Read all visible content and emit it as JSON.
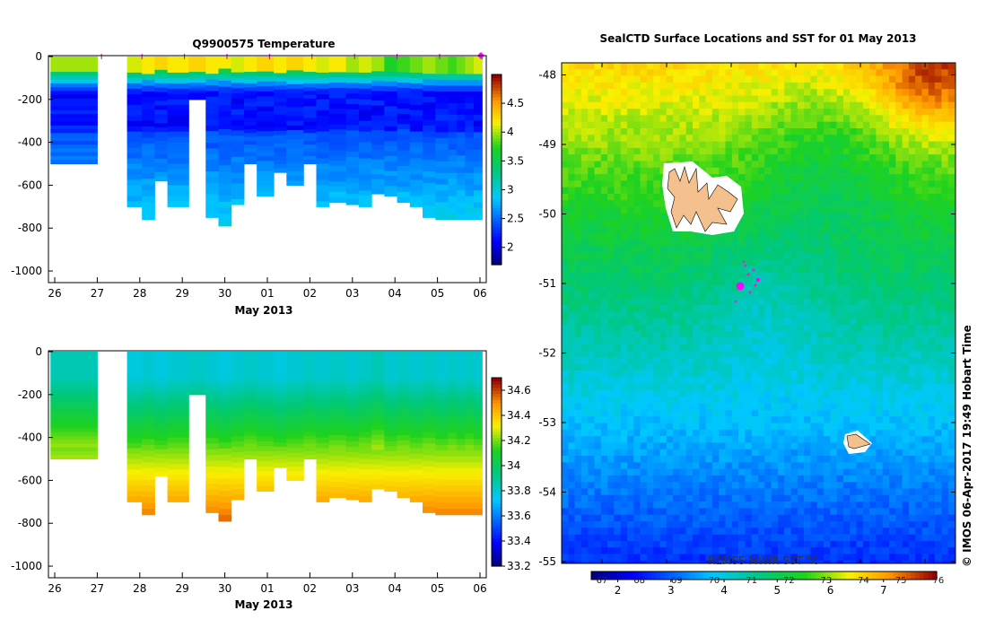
{
  "chart_data": [
    {
      "type": "heatmap",
      "title": "Q9900575  Temperature",
      "xlabel": "May 2013",
      "x_ticks": [
        "26",
        "27",
        "28",
        "29",
        "30",
        "01",
        "02",
        "03",
        "04",
        "05",
        "06"
      ],
      "y_ticks": [
        "0",
        "-200",
        "-400",
        "-600",
        "-800",
        "-1000"
      ],
      "ylim": [
        -1050,
        0
      ],
      "colorbar": {
        "min": 1.7,
        "max": 5.0,
        "ticks": [
          "2",
          "2.5",
          "3",
          "3.5",
          "4",
          "4.5"
        ]
      },
      "profiles": {
        "day_offsets": [
          0.0,
          1.7,
          2.2,
          2.5,
          2.8,
          3.3,
          3.7,
          4.0,
          4.3,
          4.6,
          4.9,
          5.3,
          5.6,
          6.0,
          6.3,
          6.6,
          7.0,
          7.3,
          7.6,
          7.9,
          8.2,
          8.5,
          8.8,
          9.1,
          9.4,
          9.6,
          9.8,
          10.0
        ],
        "max_depth": [
          500,
          700,
          760,
          580,
          700,
          200,
          750,
          790,
          690,
          500,
          650,
          540,
          600,
          500,
          700,
          680,
          690,
          700,
          640,
          650,
          680,
          700,
          750,
          760,
          760,
          760,
          760,
          760
        ],
        "surface_temp": [
          4.0,
          4.1,
          4.2,
          4.3,
          4.2,
          4.3,
          4.2,
          4.2,
          4.1,
          4.2,
          4.3,
          4.2,
          4.3,
          4.2,
          4.1,
          4.2,
          4.0,
          4.1,
          4.0,
          3.7,
          3.8,
          3.9,
          4.0,
          3.9,
          3.8,
          3.9,
          4.0,
          4.1
        ]
      }
    },
    {
      "type": "heatmap",
      "title": "",
      "xlabel": "May 2013",
      "x_ticks": [
        "26",
        "27",
        "28",
        "29",
        "30",
        "01",
        "02",
        "03",
        "04",
        "05",
        "06"
      ],
      "y_ticks": [
        "0",
        "-200",
        "-400",
        "-600",
        "-800",
        "-1000"
      ],
      "ylim": [
        -1050,
        0
      ],
      "colorbar": {
        "min": 33.2,
        "max": 34.7,
        "ticks": [
          "33.2",
          "33.4",
          "33.6",
          "33.8",
          "34",
          "34.2",
          "34.4",
          "34.6"
        ]
      },
      "profiles": {
        "surface_salinity": [
          33.85,
          33.78,
          33.8,
          33.78,
          33.8,
          33.82,
          33.8,
          33.78,
          33.8,
          33.82,
          33.8,
          33.78,
          33.8,
          33.82,
          33.8,
          33.82,
          33.8,
          33.82,
          33.85,
          33.8,
          33.82,
          33.8,
          33.82,
          33.8,
          33.82,
          33.8,
          33.82,
          33.8
        ]
      }
    },
    {
      "type": "heatmap",
      "title": "SealCTD Surface Locations and SST for 01 May 2013",
      "y_ticks": [
        "-48",
        "-49",
        "-50",
        "-51",
        "-52",
        "-53",
        "-54",
        "-55"
      ],
      "ylim": [
        -55,
        -47.8
      ],
      "colorbar": {
        "label": "REMSS MWIR SST °C",
        "min": 1.5,
        "max": 8.0,
        "ticks_c": [
          "2",
          "3",
          "4",
          "5",
          "6",
          "7"
        ],
        "ticks_f": [
          "67",
          "68",
          "69",
          "70",
          "71",
          "72",
          "73",
          "74",
          "75",
          "76"
        ]
      },
      "side_label": "© IMOS 06-Apr-2017 19:49 Hobart Time"
    }
  ]
}
